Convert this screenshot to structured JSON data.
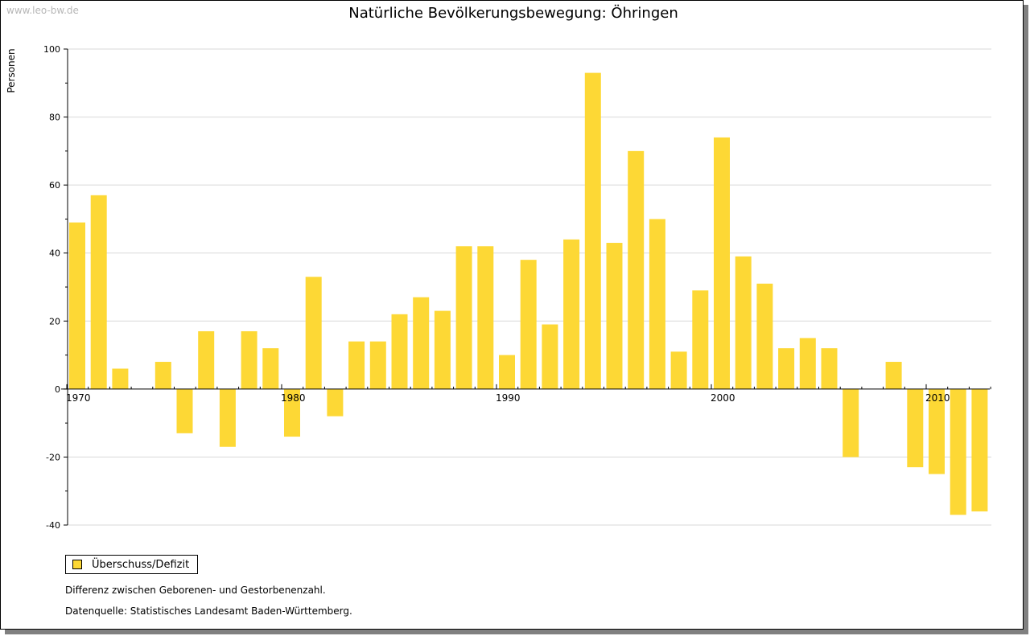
{
  "watermark": "www.leo-bw.de",
  "colors": {
    "bar": "#fdd835",
    "grid": "#d9d9d9",
    "axis": "#000000"
  },
  "legend": {
    "label": "Überschuss/Defizit"
  },
  "notes": {
    "description": "Differenz zwischen Geborenen- und Gestorbenenzahl.",
    "source": "Datenquelle: Statistisches Landesamt Baden-Württemberg."
  },
  "chart_data": {
    "type": "bar",
    "title": "Natürliche Bevölkerungsbewegung: Öhringen",
    "xlabel": "",
    "ylabel": "Personen",
    "ylim": [
      -40,
      100
    ],
    "yticks": [
      -40,
      -20,
      0,
      20,
      40,
      60,
      80,
      100
    ],
    "xtick_labels": [
      "1970",
      "1980",
      "1990",
      "2000",
      "2010"
    ],
    "categories": [
      1970,
      1971,
      1972,
      1973,
      1974,
      1975,
      1976,
      1977,
      1978,
      1979,
      1980,
      1981,
      1982,
      1983,
      1984,
      1985,
      1986,
      1987,
      1988,
      1989,
      1990,
      1991,
      1992,
      1993,
      1994,
      1995,
      1996,
      1997,
      1998,
      1999,
      2000,
      2001,
      2002,
      2003,
      2004,
      2005,
      2006,
      2007,
      2008,
      2009,
      2010,
      2011,
      2012
    ],
    "series": [
      {
        "name": "Überschuss/Defizit",
        "values": [
          49,
          57,
          6,
          0,
          8,
          -13,
          17,
          -17,
          17,
          12,
          -14,
          33,
          -8,
          14,
          14,
          22,
          27,
          23,
          42,
          42,
          10,
          38,
          19,
          44,
          93,
          43,
          70,
          50,
          11,
          29,
          74,
          39,
          31,
          12,
          15,
          12,
          -20,
          0,
          8,
          -23,
          -25,
          -37,
          -36
        ]
      }
    ]
  }
}
